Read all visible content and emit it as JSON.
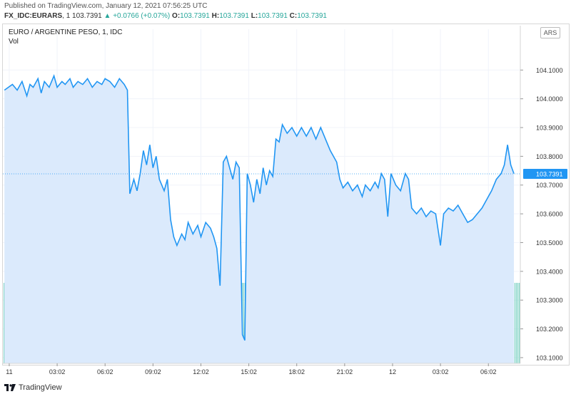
{
  "header": {
    "published": "Published on TradingView.com, January 12, 2021 07:56:25 UTC",
    "symbol": "FX_IDC:EURARS",
    "interval": "1",
    "last": "103.7391",
    "change": "▲ +0.0766 (+0.07%)",
    "o_label": "O:",
    "o_value": "103.7391",
    "h_label": "H:",
    "h_value": "103.7391",
    "l_label": "L:",
    "l_value": "103.7391",
    "c_label": "C:",
    "c_value": "103.7391"
  },
  "legend": {
    "title": "EURO / ARGENTINE PESO, 1, IDC",
    "vol": "Vol"
  },
  "currency_button": "ARS",
  "footer": {
    "brand": "TradingView"
  },
  "colors": {
    "line": "#2196f3",
    "area": "#dbeafc",
    "volume": "#7fd3c5",
    "accent_up": "#26a69a"
  },
  "chart_data": {
    "type": "area",
    "title": "EURO / ARGENTINE PESO, 1, IDC",
    "ylim": [
      103.08,
      104.18
    ],
    "y_ticks": [
      104.1,
      104.0,
      103.9,
      103.8,
      103.7,
      103.6,
      103.5,
      103.4,
      103.3,
      103.2,
      103.1
    ],
    "y_tick_labels": [
      "104.1000",
      "104.0000",
      "103.9000",
      "103.8000",
      "103.7000",
      "103.6000",
      "103.5000",
      "103.4000",
      "103.3000",
      "103.2000",
      "103.1000"
    ],
    "x_range": [
      "11 00:00",
      "12 07:56"
    ],
    "x_ticks": [
      {
        "t": 0,
        "label": "11"
      },
      {
        "t": 3,
        "label": "03:02"
      },
      {
        "t": 6,
        "label": "06:02"
      },
      {
        "t": 9,
        "label": "09:02"
      },
      {
        "t": 12,
        "label": "12:02"
      },
      {
        "t": 15,
        "label": "15:02"
      },
      {
        "t": 18,
        "label": "18:02"
      },
      {
        "t": 21,
        "label": "21:02"
      },
      {
        "t": 24,
        "label": "12"
      },
      {
        "t": 27,
        "label": "03:02"
      },
      {
        "t": 30,
        "label": "06:02"
      }
    ],
    "x_max_hours": 32.0,
    "last_price": 103.7391,
    "last_price_label": "103.7391",
    "series": [
      {
        "values": [
          [
            -0.3,
            104.03
          ],
          [
            0.2,
            104.05
          ],
          [
            0.5,
            104.03
          ],
          [
            0.8,
            104.06
          ],
          [
            1.1,
            104.01
          ],
          [
            1.3,
            104.05
          ],
          [
            1.5,
            104.04
          ],
          [
            1.8,
            104.07
          ],
          [
            2.0,
            104.02
          ],
          [
            2.2,
            104.06
          ],
          [
            2.5,
            104.04
          ],
          [
            2.8,
            104.08
          ],
          [
            3.0,
            104.04
          ],
          [
            3.3,
            104.06
          ],
          [
            3.5,
            104.05
          ],
          [
            3.8,
            104.07
          ],
          [
            4.0,
            104.04
          ],
          [
            4.3,
            104.06
          ],
          [
            4.6,
            104.05
          ],
          [
            4.9,
            104.07
          ],
          [
            5.2,
            104.04
          ],
          [
            5.5,
            104.06
          ],
          [
            5.8,
            104.05
          ],
          [
            6.0,
            104.07
          ],
          [
            6.3,
            104.06
          ],
          [
            6.6,
            104.04
          ],
          [
            6.9,
            104.07
          ],
          [
            7.2,
            104.05
          ],
          [
            7.4,
            104.03
          ],
          [
            7.55,
            103.67
          ],
          [
            7.8,
            103.72
          ],
          [
            8.0,
            103.68
          ],
          [
            8.2,
            103.74
          ],
          [
            8.4,
            103.82
          ],
          [
            8.6,
            103.77
          ],
          [
            8.8,
            103.84
          ],
          [
            9.0,
            103.76
          ],
          [
            9.2,
            103.8
          ],
          [
            9.4,
            103.72
          ],
          [
            9.7,
            103.68
          ],
          [
            9.9,
            103.72
          ],
          [
            10.1,
            103.58
          ],
          [
            10.3,
            103.52
          ],
          [
            10.5,
            103.49
          ],
          [
            10.8,
            103.53
          ],
          [
            11.0,
            103.51
          ],
          [
            11.2,
            103.57
          ],
          [
            11.5,
            103.53
          ],
          [
            11.8,
            103.56
          ],
          [
            12.0,
            103.52
          ],
          [
            12.3,
            103.57
          ],
          [
            12.6,
            103.55
          ],
          [
            12.8,
            103.52
          ],
          [
            13.0,
            103.48
          ],
          [
            13.2,
            103.35
          ],
          [
            13.4,
            103.78
          ],
          [
            13.6,
            103.8
          ],
          [
            13.8,
            103.76
          ],
          [
            14.0,
            103.72
          ],
          [
            14.2,
            103.78
          ],
          [
            14.4,
            103.76
          ],
          [
            14.6,
            103.18
          ],
          [
            14.75,
            103.16
          ],
          [
            14.9,
            103.74
          ],
          [
            15.1,
            103.7
          ],
          [
            15.3,
            103.64
          ],
          [
            15.5,
            103.72
          ],
          [
            15.7,
            103.67
          ],
          [
            15.9,
            103.76
          ],
          [
            16.1,
            103.7
          ],
          [
            16.3,
            103.75
          ],
          [
            16.5,
            103.73
          ],
          [
            16.7,
            103.86
          ],
          [
            16.9,
            103.85
          ],
          [
            17.1,
            103.91
          ],
          [
            17.4,
            103.88
          ],
          [
            17.7,
            103.9
          ],
          [
            18.0,
            103.87
          ],
          [
            18.3,
            103.9
          ],
          [
            18.6,
            103.87
          ],
          [
            18.9,
            103.9
          ],
          [
            19.2,
            103.86
          ],
          [
            19.5,
            103.9
          ],
          [
            19.8,
            103.86
          ],
          [
            20.1,
            103.82
          ],
          [
            20.3,
            103.8
          ],
          [
            20.5,
            103.78
          ],
          [
            20.7,
            103.72
          ],
          [
            20.9,
            103.69
          ],
          [
            21.2,
            103.71
          ],
          [
            21.5,
            103.68
          ],
          [
            21.8,
            103.7
          ],
          [
            22.1,
            103.66
          ],
          [
            22.3,
            103.7
          ],
          [
            22.6,
            103.68
          ],
          [
            22.9,
            103.71
          ],
          [
            23.1,
            103.69
          ],
          [
            23.3,
            103.74
          ],
          [
            23.5,
            103.72
          ],
          [
            23.7,
            103.59
          ],
          [
            23.9,
            103.74
          ],
          [
            24.2,
            103.7
          ],
          [
            24.5,
            103.68
          ],
          [
            24.8,
            103.74
          ],
          [
            25.0,
            103.72
          ],
          [
            25.2,
            103.62
          ],
          [
            25.5,
            103.6
          ],
          [
            25.8,
            103.62
          ],
          [
            26.1,
            103.59
          ],
          [
            26.4,
            103.61
          ],
          [
            26.7,
            103.6
          ],
          [
            27.0,
            103.49
          ],
          [
            27.2,
            103.6
          ],
          [
            27.5,
            103.62
          ],
          [
            27.8,
            103.61
          ],
          [
            28.1,
            103.63
          ],
          [
            28.4,
            103.6
          ],
          [
            28.7,
            103.57
          ],
          [
            29.0,
            103.58
          ],
          [
            29.3,
            103.6
          ],
          [
            29.6,
            103.62
          ],
          [
            29.9,
            103.65
          ],
          [
            30.2,
            103.68
          ],
          [
            30.5,
            103.72
          ],
          [
            30.8,
            103.74
          ],
          [
            31.0,
            103.77
          ],
          [
            31.2,
            103.84
          ],
          [
            31.4,
            103.77
          ],
          [
            31.6,
            103.74
          ]
        ]
      }
    ],
    "volume_level": 103.36
  }
}
